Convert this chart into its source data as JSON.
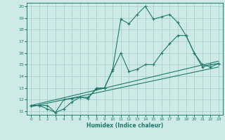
{
  "bg_color": "#ceeae6",
  "grid_color": "#aacfca",
  "line_color": "#1e7a6e",
  "xlabel": "Humidex (Indice chaleur)",
  "xlim": [
    -0.5,
    23.5
  ],
  "ylim": [
    10.7,
    20.3
  ],
  "yticks": [
    11,
    12,
    13,
    14,
    15,
    16,
    17,
    18,
    19,
    20
  ],
  "xticks": [
    0,
    1,
    2,
    3,
    4,
    5,
    6,
    7,
    8,
    9,
    10,
    11,
    12,
    13,
    14,
    15,
    16,
    17,
    18,
    19,
    20,
    21,
    22,
    23
  ],
  "series1_x": [
    0,
    1,
    2,
    3,
    4,
    5,
    6,
    7,
    8,
    9,
    10,
    11,
    12,
    13,
    14,
    15,
    16,
    17,
    18,
    19,
    20,
    21,
    22,
    23
  ],
  "series1_y": [
    11.5,
    11.5,
    11.5,
    10.9,
    12.0,
    12.1,
    12.2,
    12.1,
    13.0,
    13.0,
    14.6,
    18.9,
    18.5,
    19.3,
    20.0,
    18.9,
    19.1,
    19.3,
    18.6,
    17.5,
    16.0,
    14.8,
    15.0,
    15.1
  ],
  "series2_x": [
    0,
    1,
    2,
    3,
    4,
    5,
    6,
    7,
    8,
    9,
    10,
    11,
    12,
    13,
    14,
    15,
    16,
    17,
    18,
    19,
    20,
    21,
    22,
    23
  ],
  "series2_y": [
    11.5,
    11.5,
    11.2,
    10.9,
    11.2,
    11.8,
    12.2,
    12.2,
    12.9,
    13.0,
    14.5,
    16.0,
    14.4,
    14.6,
    15.0,
    15.0,
    16.0,
    16.8,
    17.5,
    17.5,
    16.0,
    15.0,
    14.8,
    15.1
  ],
  "line1_x": [
    0,
    23
  ],
  "line1_y": [
    11.5,
    15.3
  ],
  "line2_x": [
    0,
    23
  ],
  "line2_y": [
    11.4,
    14.8
  ]
}
